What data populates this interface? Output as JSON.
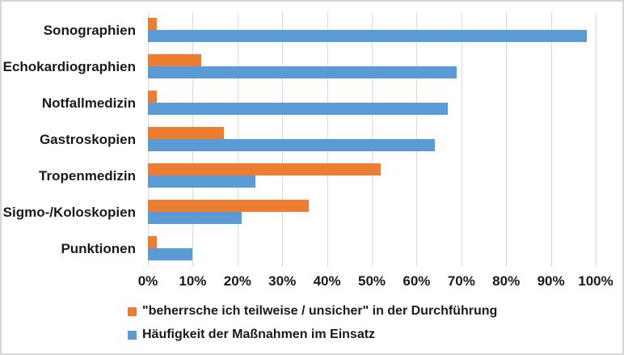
{
  "chart_data": {
    "type": "bar",
    "orientation": "horizontal",
    "title": "",
    "xlabel": "",
    "ylabel": "",
    "categories": [
      "Sonographien",
      "Echokardiographien",
      "Notfallmedizin",
      "Gastroskopien",
      "Tropenmedizin",
      "Sigmo-/Koloskopien",
      "Punktionen"
    ],
    "series": [
      {
        "name": "\"beherrsche ich teilweise / unsicher\" in der Durchführung",
        "color": "#ED7D31",
        "values": [
          2,
          12,
          2,
          17,
          52,
          36,
          2
        ]
      },
      {
        "name": "Häufigkeit der Maßnahmen im Einsatz",
        "color": "#5B9BD5",
        "values": [
          98,
          69,
          67,
          64,
          24,
          21,
          10
        ]
      }
    ],
    "xlim": [
      0,
      100
    ],
    "x_ticks": [
      "0%",
      "10%",
      "20%",
      "30%",
      "40%",
      "50%",
      "60%",
      "70%",
      "80%",
      "90%",
      "100%"
    ],
    "grid": true,
    "gridline_color": "#d9d9d9",
    "legend_position": "bottom-left"
  }
}
